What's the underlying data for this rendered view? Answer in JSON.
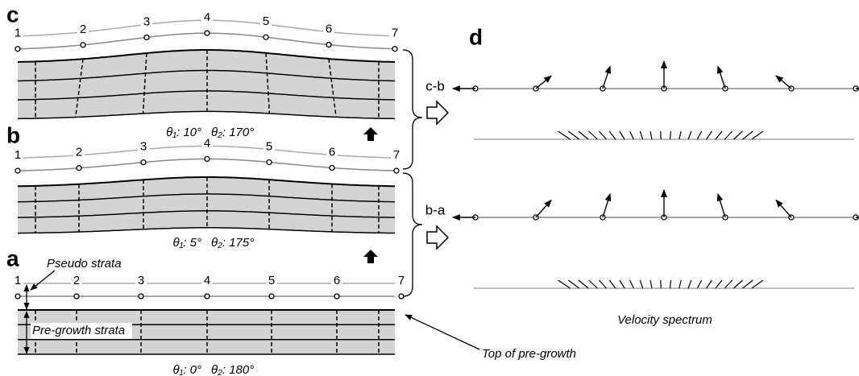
{
  "panels": [
    {
      "label": "c",
      "points": [
        "1",
        "2",
        "3",
        "4",
        "5",
        "6",
        "7"
      ],
      "angles": [
        "θ₁: 10°",
        "θ₂: 170°"
      ]
    },
    {
      "label": "b",
      "points": [
        "1",
        "2",
        "3",
        "4",
        "5",
        "6",
        "7"
      ],
      "angles": [
        "θ₁: 5°",
        "θ₂: 175°"
      ]
    },
    {
      "label": "a",
      "points": [
        "1",
        "2",
        "3",
        "4",
        "5",
        "6",
        "7"
      ],
      "angles": [
        "θ₁: 0°",
        "θ₂: 180°"
      ]
    }
  ],
  "velocity": {
    "label": "d",
    "steps": [
      "c-b",
      "b-a"
    ],
    "caption": "Velocity spectrum"
  },
  "annotations": {
    "pseudo": "Pseudo strata",
    "pregrowth": "Pre-growth strata",
    "top": "Top of pre-growth"
  }
}
